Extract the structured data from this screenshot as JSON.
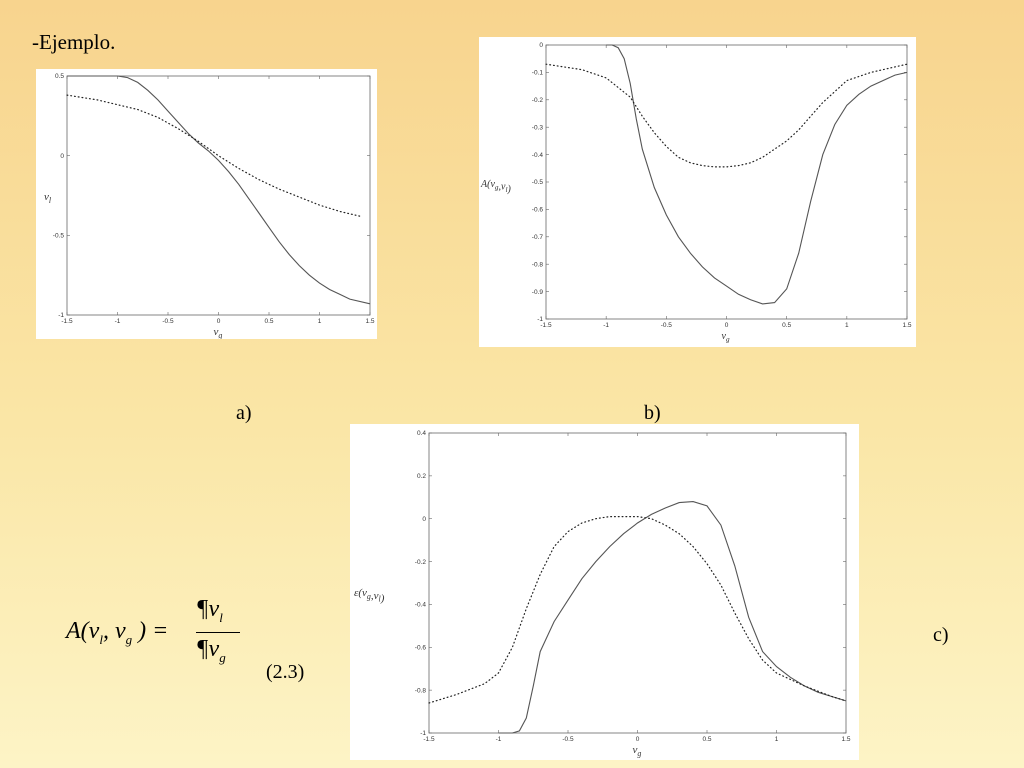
{
  "slide": {
    "title": "-Ejemplo."
  },
  "labels": {
    "a": "a)",
    "b": "b)",
    "c": "c)"
  },
  "formula": {
    "lhs_prefix": "A(v",
    "lhs_sub1": "l",
    "lhs_mid": ", v",
    "lhs_sub2": "g",
    "lhs_suffix": " ) =",
    "num_base": "¶v",
    "num_sub": "l",
    "den_base": "¶v",
    "den_sub": "g",
    "eq_number": "(2.3)"
  },
  "chart_data": [
    {
      "id": "a",
      "type": "line",
      "xlabel": "v_g",
      "ylabel": "v_l",
      "xlim": [
        -1.5,
        1.5
      ],
      "ylim": [
        -1,
        0.5
      ],
      "xticks": [
        -1.5,
        -1,
        -0.5,
        0,
        0.5,
        1,
        1.5
      ],
      "yticks": [
        0.5,
        0,
        -0.5,
        -1
      ],
      "xtick_labels": [
        "-1.5",
        "-1",
        "-0.5",
        "0",
        "0.5",
        "1",
        "1.5"
      ],
      "ytick_labels": [
        "0.5",
        "0",
        "-0.5",
        "-1"
      ],
      "series": [
        {
          "style": "solid",
          "x": [
            -1.5,
            -1.2,
            -1.0,
            -0.9,
            -0.8,
            -0.7,
            -0.6,
            -0.5,
            -0.4,
            -0.3,
            -0.2,
            -0.1,
            0,
            0.1,
            0.2,
            0.3,
            0.4,
            0.5,
            0.6,
            0.7,
            0.8,
            0.9,
            1.0,
            1.1,
            1.2,
            1.3,
            1.5
          ],
          "y": [
            0.5,
            0.5,
            0.5,
            0.49,
            0.46,
            0.41,
            0.35,
            0.28,
            0.21,
            0.14,
            0.08,
            0.03,
            -0.03,
            -0.1,
            -0.18,
            -0.27,
            -0.36,
            -0.45,
            -0.54,
            -0.62,
            -0.69,
            -0.75,
            -0.8,
            -0.84,
            -0.87,
            -0.9,
            -0.93
          ]
        },
        {
          "style": "dotted",
          "x": [
            -1.5,
            -1.2,
            -1.0,
            -0.8,
            -0.6,
            -0.4,
            -0.2,
            0,
            0.2,
            0.4,
            0.6,
            0.8,
            1.0,
            1.2,
            1.4
          ],
          "y": [
            0.38,
            0.35,
            0.32,
            0.29,
            0.24,
            0.17,
            0.09,
            0.0,
            -0.08,
            -0.15,
            -0.21,
            -0.26,
            -0.31,
            -0.35,
            -0.38
          ]
        }
      ]
    },
    {
      "id": "b",
      "type": "line",
      "xlabel": "v_g",
      "ylabel": "A(v_g,v_l)",
      "xlim": [
        -1.5,
        1.5
      ],
      "ylim": [
        -1,
        0
      ],
      "xticks": [
        -1.5,
        -1,
        -0.5,
        0,
        0.5,
        1,
        1.5
      ],
      "yticks": [
        0,
        -0.1,
        -0.2,
        -0.3,
        -0.4,
        -0.5,
        -0.6,
        -0.7,
        -0.8,
        -0.9,
        -1
      ],
      "xtick_labels": [
        "-1.5",
        "-1",
        "-0.5",
        "0",
        "0.5",
        "1",
        "1.5"
      ],
      "ytick_labels": [
        "0",
        "-0.1",
        "-0.2",
        "-0.3",
        "-0.4",
        "-0.5",
        "-0.6",
        "-0.7",
        "-0.8",
        "-0.9",
        "-1"
      ],
      "series": [
        {
          "style": "solid",
          "x": [
            -1.0,
            -0.95,
            -0.9,
            -0.85,
            -0.8,
            -0.75,
            -0.7,
            -0.6,
            -0.5,
            -0.4,
            -0.3,
            -0.2,
            -0.1,
            0,
            0.1,
            0.2,
            0.3,
            0.4,
            0.5,
            0.6,
            0.7,
            0.8,
            0.9,
            1.0,
            1.1,
            1.2,
            1.3,
            1.4,
            1.5
          ],
          "y": [
            0,
            0,
            -0.01,
            -0.05,
            -0.14,
            -0.27,
            -0.38,
            -0.52,
            -0.62,
            -0.7,
            -0.76,
            -0.81,
            -0.85,
            -0.88,
            -0.91,
            -0.93,
            -0.945,
            -0.94,
            -0.89,
            -0.76,
            -0.57,
            -0.4,
            -0.29,
            -0.22,
            -0.18,
            -0.15,
            -0.13,
            -0.11,
            -0.1
          ]
        },
        {
          "style": "dotted",
          "x": [
            -1.5,
            -1.2,
            -1.0,
            -0.8,
            -0.7,
            -0.6,
            -0.5,
            -0.4,
            -0.3,
            -0.2,
            -0.1,
            0,
            0.1,
            0.2,
            0.3,
            0.4,
            0.5,
            0.6,
            0.7,
            0.8,
            0.9,
            1.0,
            1.2,
            1.4,
            1.5
          ],
          "y": [
            -0.07,
            -0.09,
            -0.12,
            -0.19,
            -0.26,
            -0.32,
            -0.37,
            -0.41,
            -0.43,
            -0.44,
            -0.445,
            -0.445,
            -0.44,
            -0.43,
            -0.41,
            -0.38,
            -0.35,
            -0.31,
            -0.26,
            -0.21,
            -0.17,
            -0.13,
            -0.1,
            -0.08,
            -0.07
          ]
        }
      ]
    },
    {
      "id": "c",
      "type": "line",
      "xlabel": "v_g",
      "ylabel": "ε(v_g,v_l)",
      "xlim": [
        -1.5,
        1.5
      ],
      "ylim": [
        -1,
        0.4
      ],
      "xticks": [
        -1.5,
        -1,
        -0.5,
        0,
        0.5,
        1,
        1.5
      ],
      "yticks": [
        0.4,
        0.2,
        0,
        -0.2,
        -0.4,
        -0.6,
        -0.8,
        -1
      ],
      "xtick_labels": [
        "-1.5",
        "-1",
        "-0.5",
        "0",
        "0.5",
        "1",
        "1.5"
      ],
      "ytick_labels": [
        "0.4",
        "0.2",
        "0",
        "-0.2",
        "-0.4",
        "-0.6",
        "-0.8",
        "-1"
      ],
      "series": [
        {
          "style": "solid",
          "x": [
            -1.0,
            -0.9,
            -0.85,
            -0.8,
            -0.75,
            -0.7,
            -0.6,
            -0.5,
            -0.4,
            -0.3,
            -0.2,
            -0.1,
            0,
            0.1,
            0.2,
            0.3,
            0.4,
            0.5,
            0.6,
            0.7,
            0.8,
            0.9,
            1.0,
            1.1,
            1.2,
            1.3,
            1.4,
            1.5
          ],
          "y": [
            -1.0,
            -1.0,
            -0.99,
            -0.93,
            -0.78,
            -0.62,
            -0.48,
            -0.38,
            -0.28,
            -0.2,
            -0.13,
            -0.07,
            -0.02,
            0.02,
            0.05,
            0.075,
            0.08,
            0.06,
            -0.03,
            -0.22,
            -0.46,
            -0.62,
            -0.69,
            -0.74,
            -0.78,
            -0.81,
            -0.83,
            -0.85
          ]
        },
        {
          "style": "dotted",
          "x": [
            -1.5,
            -1.3,
            -1.1,
            -1.0,
            -0.9,
            -0.8,
            -0.7,
            -0.6,
            -0.5,
            -0.4,
            -0.3,
            -0.2,
            -0.1,
            0,
            0.1,
            0.2,
            0.3,
            0.4,
            0.5,
            0.6,
            0.7,
            0.8,
            0.9,
            1.0,
            1.2,
            1.4,
            1.5
          ],
          "y": [
            -0.86,
            -0.82,
            -0.77,
            -0.72,
            -0.6,
            -0.42,
            -0.26,
            -0.13,
            -0.06,
            -0.02,
            0.0,
            0.01,
            0.01,
            0.01,
            0.0,
            -0.03,
            -0.07,
            -0.13,
            -0.21,
            -0.31,
            -0.44,
            -0.56,
            -0.66,
            -0.72,
            -0.78,
            -0.83,
            -0.85
          ]
        }
      ]
    }
  ]
}
